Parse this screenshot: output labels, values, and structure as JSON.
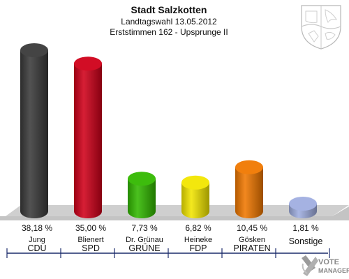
{
  "chart_data": {
    "type": "bar",
    "title": "Stadt Salzkotten",
    "subtitle_line1": "Landtagswahl 13.05.2012",
    "subtitle_line2": "Erststimmen 162 - Upsprunge II",
    "ylim": [
      0,
      40
    ],
    "grid": false,
    "categories": [
      {
        "candidate": "Jung",
        "party": "CDU",
        "value": 38.18,
        "label": "38,18 %",
        "color": "#3a3a3a"
      },
      {
        "candidate": "Blienert",
        "party": "SPD",
        "value": 35.0,
        "label": "35,00 %",
        "color": "#d0001a"
      },
      {
        "candidate": "Dr. Grünau",
        "party": "GRÜNE",
        "value": 7.73,
        "label": "7,73 %",
        "color": "#33b800"
      },
      {
        "candidate": "Heineke",
        "party": "FDP",
        "value": 6.82,
        "label": "6,82 %",
        "color": "#f2e600"
      },
      {
        "candidate": "Gösken",
        "party": "PIRATEN",
        "value": 10.45,
        "label": "10,45 %",
        "color": "#f07800"
      },
      {
        "candidate": "",
        "party": "Sonstige",
        "value": 1.81,
        "label": "1,81 %",
        "color": "#a0aee0"
      }
    ]
  },
  "branding": {
    "logo_text_line1": "VOTE",
    "logo_text_line2": "MANAGER",
    "crest_icon": "nrw-coat-of-arms-icon"
  }
}
